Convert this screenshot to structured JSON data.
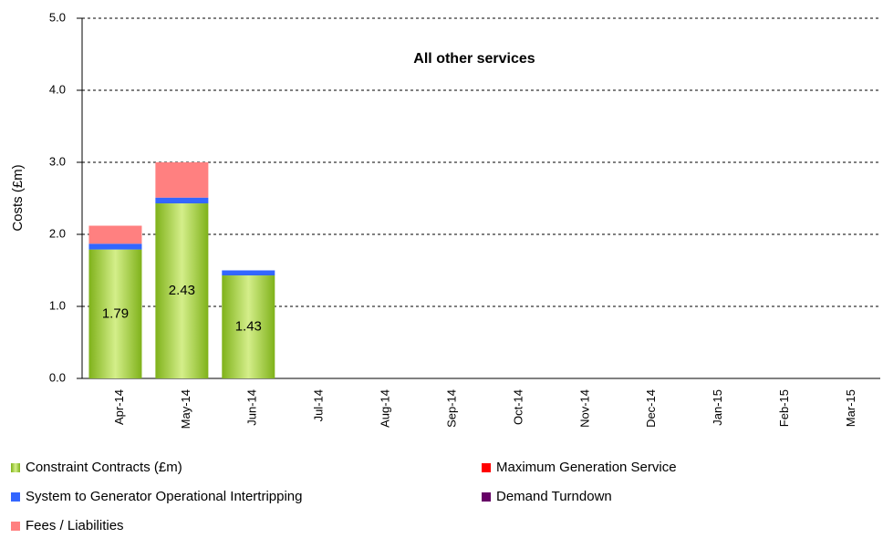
{
  "chart_data": {
    "type": "stacked_bar",
    "title": "All other services",
    "y_label": "Costs (£m)",
    "categories": [
      "Apr-14",
      "May-14",
      "Jun-14",
      "Jul-14",
      "Aug-14",
      "Sep-14",
      "Oct-14",
      "Nov-14",
      "Dec-14",
      "Jan-15",
      "Feb-15",
      "Mar-15"
    ],
    "series": [
      {
        "name": "Constraint Contracts (£m)",
        "color": "#99cc33",
        "values": [
          1.79,
          2.43,
          1.43,
          null,
          null,
          null,
          null,
          null,
          null,
          null,
          null,
          null
        ]
      },
      {
        "name": "Maximum Generation Service",
        "color": "#ff0000",
        "values": [
          0,
          0,
          0,
          null,
          null,
          null,
          null,
          null,
          null,
          null,
          null,
          null
        ]
      },
      {
        "name": "System to Generator Operational Intertripping",
        "color": "#3366ff",
        "values": [
          0.08,
          0.08,
          0.07,
          null,
          null,
          null,
          null,
          null,
          null,
          null,
          null,
          null
        ]
      },
      {
        "name": "Demand Turndown",
        "color": "#660066",
        "values": [
          0,
          0,
          0,
          null,
          null,
          null,
          null,
          null,
          null,
          null,
          null,
          null
        ]
      },
      {
        "name": "Fees / Liabilities",
        "color": "#ff8080",
        "values": [
          0.25,
          0.49,
          0,
          null,
          null,
          null,
          null,
          null,
          null,
          null,
          null,
          null
        ]
      }
    ],
    "data_label_series": 0,
    "ylim": [
      0,
      5
    ],
    "yticks": [
      {
        "value": 0,
        "label": "0.0"
      },
      {
        "value": 1,
        "label": "1.0"
      },
      {
        "value": 2,
        "label": "2.0"
      },
      {
        "value": 3,
        "label": "3.0"
      },
      {
        "value": 4,
        "label": "4.0"
      },
      {
        "value": 5,
        "label": "5.0"
      }
    ],
    "grid": true
  }
}
